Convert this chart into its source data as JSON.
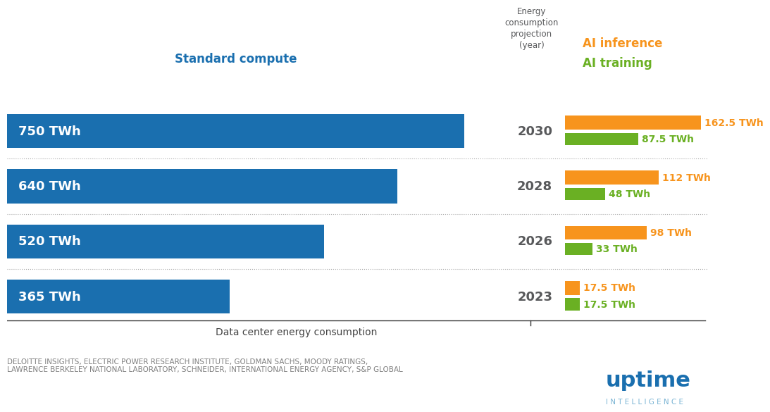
{
  "years": [
    "2030",
    "2028",
    "2026",
    "2023"
  ],
  "standard_compute": [
    750,
    640,
    520,
    365
  ],
  "ai_inference": [
    162.5,
    112,
    98,
    17.5
  ],
  "ai_training": [
    87.5,
    48,
    33,
    17.5
  ],
  "standard_compute_labels": [
    "750 TWh",
    "640 TWh",
    "520 TWh",
    "365 TWh"
  ],
  "ai_inference_labels": [
    "162.5 TWh",
    "112 TWh",
    "98 TWh",
    "17.5 TWh"
  ],
  "ai_training_labels": [
    "87.5 TWh",
    "48 TWh",
    "33 TWh",
    "17.5 TWh"
  ],
  "color_blue": "#1a6faf",
  "color_orange": "#f7941d",
  "color_green": "#6ab023",
  "color_year": "#58595b",
  "color_standard_compute_label": "#1a6faf",
  "color_ai_inference_label": "#f7941d",
  "color_ai_training_label": "#6ab023",
  "bg_color": "#ffffff",
  "header_standard_compute": "Standard compute",
  "header_energy_projection": "Energy\nconsumption\nprojection\n(year)",
  "header_ai_inference": "AI inference",
  "header_ai_training": "AI training",
  "xlabel": "Data center energy consumption",
  "footer_text": "DELOITTE INSIGHTS, ELECTRIC POWER RESEARCH INSTITUTE, GOLDMAN SACHS, MOODY RATINGS,\nLAWRENCE BERKELEY NATIONAL LABORATORY, SCHNEIDER, INTERNATIONAL ENERGY AGENCY, S&P GLOBAL",
  "uptime_text": "uptime",
  "intelligence_text": "I N T E L L I G E N C E"
}
